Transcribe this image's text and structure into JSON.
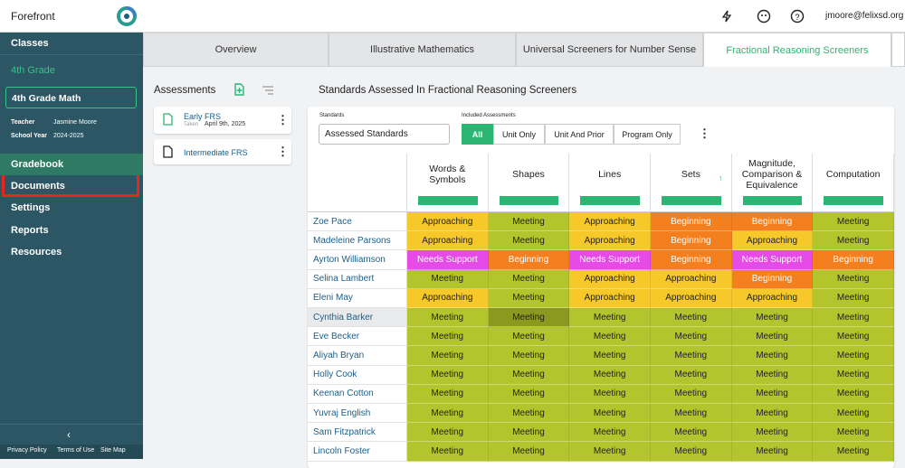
{
  "header": {
    "brand": "Forefront",
    "user": "jmoore@felixsd.org"
  },
  "sidebar": {
    "classes": "Classes",
    "grade": "4th Grade",
    "course": "4th Grade Math",
    "teacher_label": "Teacher",
    "teacher": "Jasmine Moore",
    "year_label": "School Year",
    "year": "2024-2025",
    "items": [
      "Gradebook",
      "Documents",
      "Settings",
      "Reports",
      "Resources"
    ],
    "footer": [
      "Privacy Policy",
      "Terms of Use",
      "Site Map"
    ]
  },
  "tabs": [
    "Overview",
    "Illustrative Mathematics",
    "Universal Screeners for Number Sense",
    "Fractional Reasoning Screeners"
  ],
  "assessments": {
    "title": "Assessments",
    "items": [
      {
        "name": "Early FRS",
        "taken_label": "Taken",
        "date": "April 9th, 2025"
      },
      {
        "name": "Intermediate FRS"
      }
    ]
  },
  "report": {
    "title": "Standards Assessed In Fractional Reasoning Screeners",
    "standards_label": "Standards",
    "standards_value": "Assessed Standards",
    "included_label": "Included Assessments",
    "filters": [
      "All",
      "Unit Only",
      "Unit And Prior",
      "Program Only"
    ]
  },
  "table": {
    "columns": [
      "Words & Symbols",
      "Shapes",
      "Lines",
      "Sets",
      "Magnitude, Comparison & Equivalence",
      "Computation"
    ],
    "rows": [
      {
        "name": "Zoe Pace",
        "cells": [
          {
            "label": "Approaching",
            "color": "#f6c82a"
          },
          {
            "label": "Meeting",
            "color": "#b3c42c"
          },
          {
            "label": "Approaching",
            "color": "#f6c82a"
          },
          {
            "label": "Beginning",
            "color": "#f47f1e"
          },
          {
            "label": "Beginning",
            "color": "#f47f1e"
          },
          {
            "label": "Meeting",
            "color": "#b3c42c"
          }
        ]
      },
      {
        "name": "Madeleine Parsons",
        "cells": [
          {
            "label": "Approaching",
            "color": "#f6c82a"
          },
          {
            "label": "Meeting",
            "color": "#b3c42c"
          },
          {
            "label": "Approaching",
            "color": "#f6c82a"
          },
          {
            "label": "Beginning",
            "color": "#f47f1e"
          },
          {
            "label": "Approaching",
            "color": "#f6c82a"
          },
          {
            "label": "Meeting",
            "color": "#b3c42c"
          }
        ]
      },
      {
        "name": "Ayrton Williamson",
        "cells": [
          {
            "label": "Needs Support",
            "color": "#e64be8"
          },
          {
            "label": "Beginning",
            "color": "#f47f1e"
          },
          {
            "label": "Needs Support",
            "color": "#e64be8"
          },
          {
            "label": "Beginning",
            "color": "#f47f1e"
          },
          {
            "label": "Needs Support",
            "color": "#e64be8"
          },
          {
            "label": "Beginning",
            "color": "#f47f1e"
          }
        ]
      },
      {
        "name": "Selina Lambert",
        "cells": [
          {
            "label": "Meeting",
            "color": "#b3c42c"
          },
          {
            "label": "Meeting",
            "color": "#b3c42c"
          },
          {
            "label": "Approaching",
            "color": "#f6c82a"
          },
          {
            "label": "Approaching",
            "color": "#f6c82a"
          },
          {
            "label": "Beginning",
            "color": "#f47f1e"
          },
          {
            "label": "Meeting",
            "color": "#b3c42c"
          }
        ]
      },
      {
        "name": "Eleni May",
        "cells": [
          {
            "label": "Approaching",
            "color": "#f6c82a"
          },
          {
            "label": "Meeting",
            "color": "#b3c42c"
          },
          {
            "label": "Approaching",
            "color": "#f6c82a"
          },
          {
            "label": "Approaching",
            "color": "#f6c82a"
          },
          {
            "label": "Approaching",
            "color": "#f6c82a"
          },
          {
            "label": "Meeting",
            "color": "#b3c42c"
          }
        ]
      },
      {
        "name": "Cynthia Barker",
        "cells": [
          {
            "label": "Meeting",
            "color": "#b3c42c"
          },
          {
            "label": "Meeting",
            "color": "#8c981e"
          },
          {
            "label": "Meeting",
            "color": "#b3c42c"
          },
          {
            "label": "Meeting",
            "color": "#b3c42c"
          },
          {
            "label": "Meeting",
            "color": "#b3c42c"
          },
          {
            "label": "Meeting",
            "color": "#b3c42c"
          }
        ]
      },
      {
        "name": "Eve Becker",
        "cells": [
          {
            "label": "Meeting",
            "color": "#b3c42c"
          },
          {
            "label": "Meeting",
            "color": "#b3c42c"
          },
          {
            "label": "Meeting",
            "color": "#b3c42c"
          },
          {
            "label": "Meeting",
            "color": "#b3c42c"
          },
          {
            "label": "Meeting",
            "color": "#b3c42c"
          },
          {
            "label": "Meeting",
            "color": "#b3c42c"
          }
        ]
      },
      {
        "name": "Aliyah Bryan",
        "cells": [
          {
            "label": "Meeting",
            "color": "#b3c42c"
          },
          {
            "label": "Meeting",
            "color": "#b3c42c"
          },
          {
            "label": "Meeting",
            "color": "#b3c42c"
          },
          {
            "label": "Meeting",
            "color": "#b3c42c"
          },
          {
            "label": "Meeting",
            "color": "#b3c42c"
          },
          {
            "label": "Meeting",
            "color": "#b3c42c"
          }
        ]
      },
      {
        "name": "Holly Cook",
        "cells": [
          {
            "label": "Meeting",
            "color": "#b3c42c"
          },
          {
            "label": "Meeting",
            "color": "#b3c42c"
          },
          {
            "label": "Meeting",
            "color": "#b3c42c"
          },
          {
            "label": "Meeting",
            "color": "#b3c42c"
          },
          {
            "label": "Meeting",
            "color": "#b3c42c"
          },
          {
            "label": "Meeting",
            "color": "#b3c42c"
          }
        ]
      },
      {
        "name": "Keenan Cotton",
        "cells": [
          {
            "label": "Meeting",
            "color": "#b3c42c"
          },
          {
            "label": "Meeting",
            "color": "#b3c42c"
          },
          {
            "label": "Meeting",
            "color": "#b3c42c"
          },
          {
            "label": "Meeting",
            "color": "#b3c42c"
          },
          {
            "label": "Meeting",
            "color": "#b3c42c"
          },
          {
            "label": "Meeting",
            "color": "#b3c42c"
          }
        ]
      },
      {
        "name": "Yuvraj English",
        "cells": [
          {
            "label": "Meeting",
            "color": "#b3c42c"
          },
          {
            "label": "Meeting",
            "color": "#b3c42c"
          },
          {
            "label": "Meeting",
            "color": "#b3c42c"
          },
          {
            "label": "Meeting",
            "color": "#b3c42c"
          },
          {
            "label": "Meeting",
            "color": "#b3c42c"
          },
          {
            "label": "Meeting",
            "color": "#b3c42c"
          }
        ]
      },
      {
        "name": "Sam Fitzpatrick",
        "cells": [
          {
            "label": "Meeting",
            "color": "#b3c42c"
          },
          {
            "label": "Meeting",
            "color": "#b3c42c"
          },
          {
            "label": "Meeting",
            "color": "#b3c42c"
          },
          {
            "label": "Meeting",
            "color": "#b3c42c"
          },
          {
            "label": "Meeting",
            "color": "#b3c42c"
          },
          {
            "label": "Meeting",
            "color": "#b3c42c"
          }
        ]
      },
      {
        "name": "Lincoln Foster",
        "cells": [
          {
            "label": "Meeting",
            "color": "#b3c42c"
          },
          {
            "label": "Meeting",
            "color": "#b3c42c"
          },
          {
            "label": "Meeting",
            "color": "#b3c42c"
          },
          {
            "label": "Meeting",
            "color": "#b3c42c"
          },
          {
            "label": "Meeting",
            "color": "#b3c42c"
          },
          {
            "label": "Meeting",
            "color": "#b3c42c"
          }
        ]
      }
    ]
  }
}
